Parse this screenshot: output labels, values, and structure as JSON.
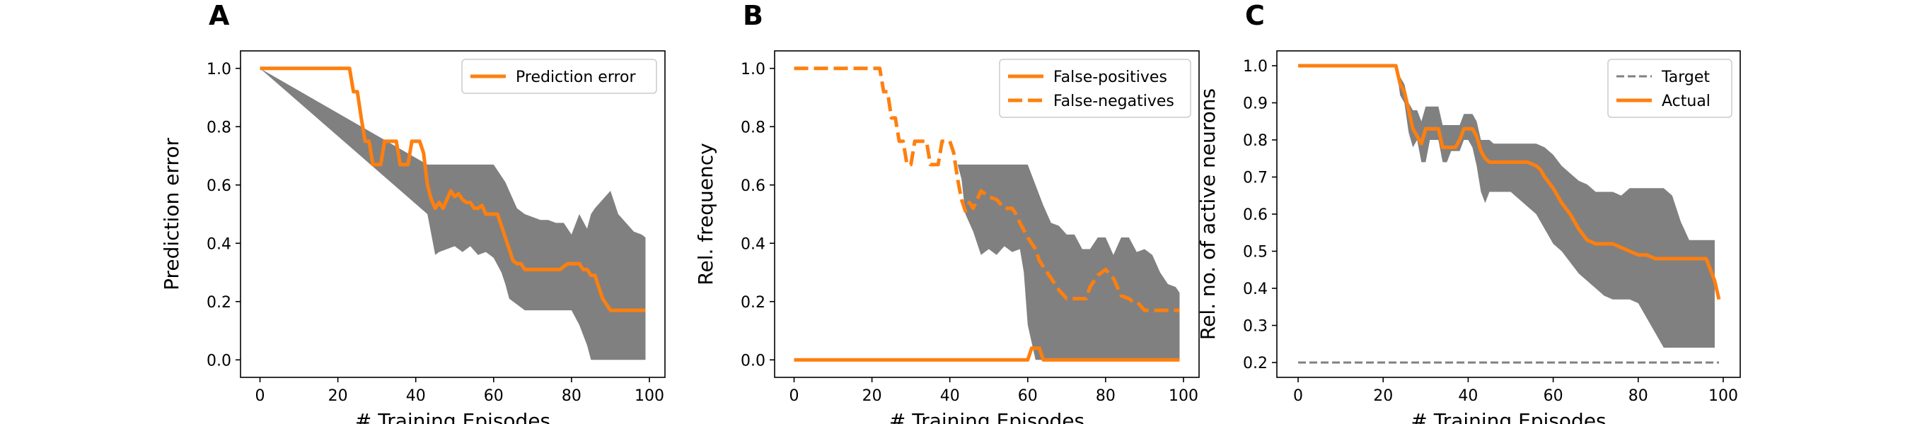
{
  "colors": {
    "orange": "#ff7f0e",
    "band": "#808080",
    "target": "#808080",
    "axis": "#000000"
  },
  "chart_data": [
    {
      "panel_letter": "A",
      "type": "line",
      "xlabel": "# Training Episodes",
      "ylabel": "Prediction error",
      "xlim": [
        -5,
        104
      ],
      "ylim": [
        -0.06,
        1.06
      ],
      "xticks": [
        0,
        20,
        40,
        60,
        80,
        100
      ],
      "yticks": [
        0.0,
        0.2,
        0.4,
        0.6,
        0.8,
        1.0
      ],
      "ytick_format": 1,
      "grid": false,
      "legend": {
        "position": "top-right"
      },
      "band": {
        "x": [
          0,
          43,
          44,
          45,
          46,
          48,
          50,
          52,
          54,
          56,
          58,
          60,
          62,
          63,
          64,
          66,
          68,
          70,
          72,
          74,
          76,
          78,
          80,
          82,
          84,
          85,
          86,
          88,
          90,
          92,
          94,
          96,
          98,
          99
        ],
        "upper": [
          1.0,
          0.67,
          0.67,
          0.67,
          0.67,
          0.67,
          0.67,
          0.67,
          0.67,
          0.67,
          0.67,
          0.67,
          0.63,
          0.61,
          0.58,
          0.52,
          0.5,
          0.49,
          0.48,
          0.48,
          0.47,
          0.47,
          0.43,
          0.5,
          0.45,
          0.5,
          0.52,
          0.55,
          0.58,
          0.5,
          0.47,
          0.44,
          0.43,
          0.42
        ],
        "lower": [
          1.0,
          0.5,
          0.43,
          0.36,
          0.37,
          0.38,
          0.39,
          0.37,
          0.39,
          0.36,
          0.37,
          0.35,
          0.3,
          0.26,
          0.21,
          0.19,
          0.17,
          0.17,
          0.17,
          0.17,
          0.17,
          0.17,
          0.17,
          0.12,
          0.05,
          0.0,
          0.0,
          0.0,
          0.0,
          0.0,
          0.0,
          0.0,
          0.0,
          0.0
        ]
      },
      "series": [
        {
          "name": "Prediction error",
          "style": "solid",
          "x": [
            0,
            23,
            24,
            25,
            26,
            27,
            28,
            29,
            30,
            31,
            32,
            33,
            34,
            35,
            36,
            37,
            38,
            39,
            40,
            41,
            42,
            43,
            44,
            45,
            46,
            47,
            48,
            49,
            50,
            51,
            52,
            53,
            54,
            55,
            56,
            57,
            58,
            59,
            60,
            61,
            62,
            63,
            64,
            65,
            66,
            67,
            68,
            70,
            72,
            74,
            76,
            77,
            78,
            79,
            80,
            81,
            82,
            83,
            84,
            85,
            86,
            87,
            88,
            90,
            92,
            94,
            96,
            98,
            99
          ],
          "y": [
            1.0,
            1.0,
            0.92,
            0.92,
            0.83,
            0.75,
            0.75,
            0.67,
            0.67,
            0.67,
            0.75,
            0.75,
            0.75,
            0.75,
            0.67,
            0.67,
            0.67,
            0.75,
            0.75,
            0.75,
            0.71,
            0.6,
            0.55,
            0.52,
            0.54,
            0.52,
            0.55,
            0.58,
            0.56,
            0.57,
            0.55,
            0.54,
            0.54,
            0.52,
            0.52,
            0.53,
            0.5,
            0.5,
            0.5,
            0.5,
            0.46,
            0.42,
            0.38,
            0.34,
            0.33,
            0.33,
            0.31,
            0.31,
            0.31,
            0.31,
            0.31,
            0.31,
            0.32,
            0.33,
            0.33,
            0.33,
            0.33,
            0.31,
            0.31,
            0.29,
            0.29,
            0.25,
            0.21,
            0.17,
            0.17,
            0.17,
            0.17,
            0.17,
            0.17
          ]
        }
      ]
    },
    {
      "panel_letter": "B",
      "type": "line",
      "xlabel": "# Training Episodes",
      "ylabel": "Rel. frequency",
      "xlim": [
        -5,
        104
      ],
      "ylim": [
        -0.06,
        1.06
      ],
      "xticks": [
        0,
        20,
        40,
        60,
        80,
        100
      ],
      "yticks": [
        0.0,
        0.2,
        0.4,
        0.6,
        0.8,
        1.0
      ],
      "ytick_format": 1,
      "grid": false,
      "legend": {
        "position": "top-right"
      },
      "band": {
        "x": [
          0,
          42,
          43,
          44,
          46,
          48,
          50,
          52,
          54,
          56,
          58,
          59,
          60,
          62,
          64,
          66,
          68,
          70,
          72,
          74,
          76,
          78,
          80,
          82,
          84,
          86,
          88,
          90,
          92,
          94,
          96,
          98,
          99
        ],
        "upper": [
          1.0,
          0.67,
          0.67,
          0.67,
          0.67,
          0.67,
          0.67,
          0.67,
          0.67,
          0.67,
          0.67,
          0.67,
          0.67,
          0.6,
          0.53,
          0.47,
          0.46,
          0.43,
          0.43,
          0.38,
          0.38,
          0.42,
          0.42,
          0.36,
          0.42,
          0.42,
          0.37,
          0.38,
          0.36,
          0.3,
          0.26,
          0.25,
          0.23
        ],
        "lower": [
          1.0,
          0.67,
          0.62,
          0.5,
          0.44,
          0.36,
          0.38,
          0.36,
          0.39,
          0.37,
          0.38,
          0.3,
          0.12,
          0.0,
          0.0,
          0.0,
          0.0,
          0.0,
          0.0,
          0.0,
          0.0,
          0.0,
          0.0,
          0.0,
          0.0,
          0.0,
          0.0,
          0.0,
          0.0,
          0.0,
          0.0,
          0.0,
          0.0
        ]
      },
      "series": [
        {
          "name": "False-positives",
          "style": "solid",
          "x": [
            0,
            60,
            61,
            63,
            64,
            99
          ],
          "y": [
            0.0,
            0.0,
            0.04,
            0.04,
            0.0,
            0.0
          ]
        },
        {
          "name": "False-negatives",
          "style": "dashed",
          "x": [
            0,
            22,
            23,
            24,
            25,
            26,
            27,
            28,
            29,
            30,
            31,
            32,
            33,
            34,
            35,
            36,
            37,
            38,
            39,
            40,
            41,
            42,
            43,
            44,
            45,
            46,
            47,
            48,
            50,
            52,
            54,
            56,
            57,
            58,
            60,
            62,
            63,
            64,
            66,
            68,
            70,
            72,
            74,
            75,
            76,
            78,
            80,
            82,
            84,
            86,
            87,
            88,
            90,
            92,
            94,
            96,
            98,
            99
          ],
          "y": [
            1.0,
            1.0,
            0.92,
            0.92,
            0.83,
            0.83,
            0.75,
            0.75,
            0.67,
            0.67,
            0.75,
            0.75,
            0.75,
            0.75,
            0.67,
            0.67,
            0.67,
            0.75,
            0.75,
            0.75,
            0.71,
            0.62,
            0.55,
            0.51,
            0.54,
            0.52,
            0.55,
            0.58,
            0.56,
            0.55,
            0.52,
            0.52,
            0.5,
            0.47,
            0.42,
            0.38,
            0.34,
            0.32,
            0.28,
            0.24,
            0.21,
            0.21,
            0.21,
            0.21,
            0.25,
            0.29,
            0.31,
            0.28,
            0.22,
            0.21,
            0.2,
            0.2,
            0.17,
            0.17,
            0.17,
            0.17,
            0.17,
            0.17
          ]
        }
      ]
    },
    {
      "panel_letter": "C",
      "type": "line",
      "xlabel": "# Training Episodes",
      "ylabel": "Rel. no. of active neurons",
      "xlim": [
        -5,
        104
      ],
      "ylim": [
        0.16,
        1.04
      ],
      "xticks": [
        0,
        20,
        40,
        60,
        80,
        100
      ],
      "yticks": [
        0.2,
        0.3,
        0.4,
        0.5,
        0.6,
        0.7,
        0.8,
        0.9,
        1.0
      ],
      "ytick_format": 1,
      "grid": false,
      "legend": {
        "position": "top-right"
      },
      "band": {
        "x": [
          0,
          23,
          24,
          25,
          26,
          27,
          28,
          29,
          30,
          31,
          32,
          33,
          34,
          35,
          36,
          37,
          38,
          39,
          40,
          41,
          42,
          43,
          44,
          45,
          46,
          48,
          50,
          52,
          54,
          56,
          58,
          60,
          62,
          64,
          66,
          68,
          70,
          72,
          74,
          76,
          78,
          80,
          82,
          84,
          86,
          88,
          90,
          92,
          94,
          96,
          98
        ],
        "upper": [
          1.0,
          1.0,
          0.97,
          0.95,
          0.9,
          0.88,
          0.88,
          0.85,
          0.89,
          0.89,
          0.89,
          0.89,
          0.84,
          0.84,
          0.84,
          0.84,
          0.84,
          0.87,
          0.87,
          0.87,
          0.85,
          0.8,
          0.8,
          0.8,
          0.79,
          0.79,
          0.79,
          0.79,
          0.79,
          0.79,
          0.78,
          0.76,
          0.73,
          0.71,
          0.69,
          0.68,
          0.66,
          0.66,
          0.66,
          0.65,
          0.67,
          0.67,
          0.67,
          0.67,
          0.67,
          0.65,
          0.58,
          0.53,
          0.53,
          0.53,
          0.53
        ],
        "lower": [
          1.0,
          1.0,
          0.92,
          0.9,
          0.82,
          0.78,
          0.8,
          0.74,
          0.74,
          0.8,
          0.8,
          0.8,
          0.74,
          0.74,
          0.77,
          0.77,
          0.77,
          0.8,
          0.8,
          0.78,
          0.73,
          0.66,
          0.63,
          0.66,
          0.66,
          0.66,
          0.66,
          0.64,
          0.62,
          0.6,
          0.56,
          0.52,
          0.5,
          0.47,
          0.44,
          0.42,
          0.4,
          0.38,
          0.37,
          0.37,
          0.37,
          0.36,
          0.32,
          0.28,
          0.24,
          0.24,
          0.24,
          0.24,
          0.24,
          0.24,
          0.24
        ]
      },
      "series": [
        {
          "name": "Target",
          "style": "dashed-thin",
          "x": [
            0,
            99
          ],
          "y": [
            0.2,
            0.2
          ]
        },
        {
          "name": "Actual",
          "style": "solid",
          "x": [
            0,
            23,
            24,
            25,
            26,
            27,
            28,
            29,
            30,
            31,
            32,
            33,
            34,
            35,
            36,
            37,
            38,
            39,
            40,
            41,
            42,
            43,
            44,
            45,
            46,
            48,
            50,
            52,
            54,
            56,
            57,
            58,
            60,
            62,
            64,
            66,
            68,
            70,
            72,
            74,
            76,
            78,
            80,
            82,
            84,
            86,
            88,
            90,
            92,
            94,
            96,
            98,
            99
          ],
          "y": [
            1.0,
            1.0,
            0.95,
            0.93,
            0.88,
            0.83,
            0.81,
            0.79,
            0.83,
            0.83,
            0.83,
            0.83,
            0.78,
            0.78,
            0.78,
            0.78,
            0.8,
            0.83,
            0.83,
            0.83,
            0.81,
            0.77,
            0.75,
            0.74,
            0.74,
            0.74,
            0.74,
            0.74,
            0.74,
            0.73,
            0.72,
            0.7,
            0.67,
            0.63,
            0.6,
            0.56,
            0.53,
            0.52,
            0.52,
            0.52,
            0.51,
            0.5,
            0.49,
            0.49,
            0.48,
            0.48,
            0.48,
            0.48,
            0.48,
            0.48,
            0.48,
            0.42,
            0.37
          ]
        }
      ]
    }
  ]
}
